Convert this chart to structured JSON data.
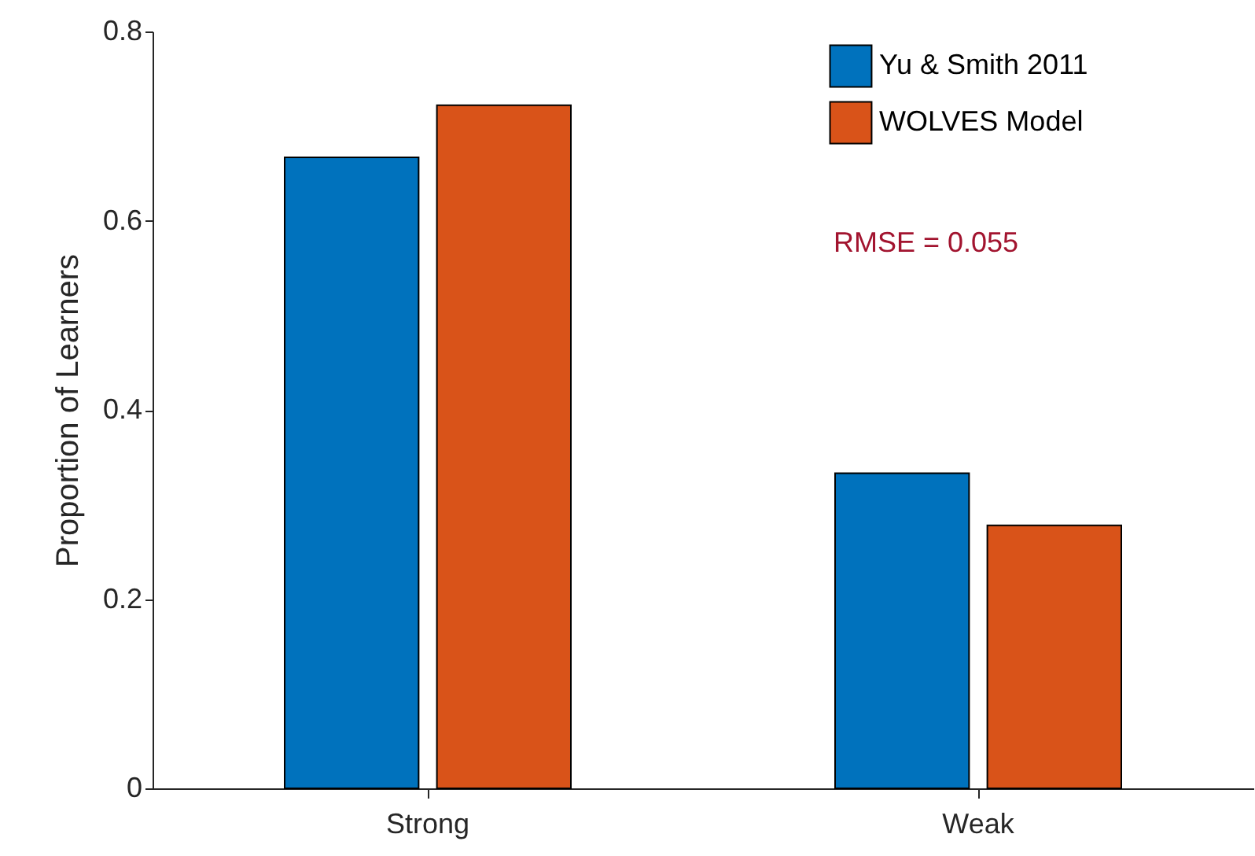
{
  "chart_data": {
    "type": "bar",
    "ylabel": "Proportion of Learners",
    "categories": [
      "Strong",
      "Weak"
    ],
    "series": [
      {
        "name": "Yu & Smith 2011",
        "color": "#0072bd",
        "values": [
          0.667,
          0.333
        ]
      },
      {
        "name": "WOLVES Model",
        "color": "#d95319",
        "values": [
          0.722,
          0.278
        ]
      }
    ],
    "ylim": [
      0,
      0.8
    ],
    "yticks": [
      0,
      0.2,
      0.4,
      0.6,
      0.8
    ],
    "grid": false,
    "legend": "top right",
    "annotations": [
      "RMSE = 0.055"
    ]
  }
}
